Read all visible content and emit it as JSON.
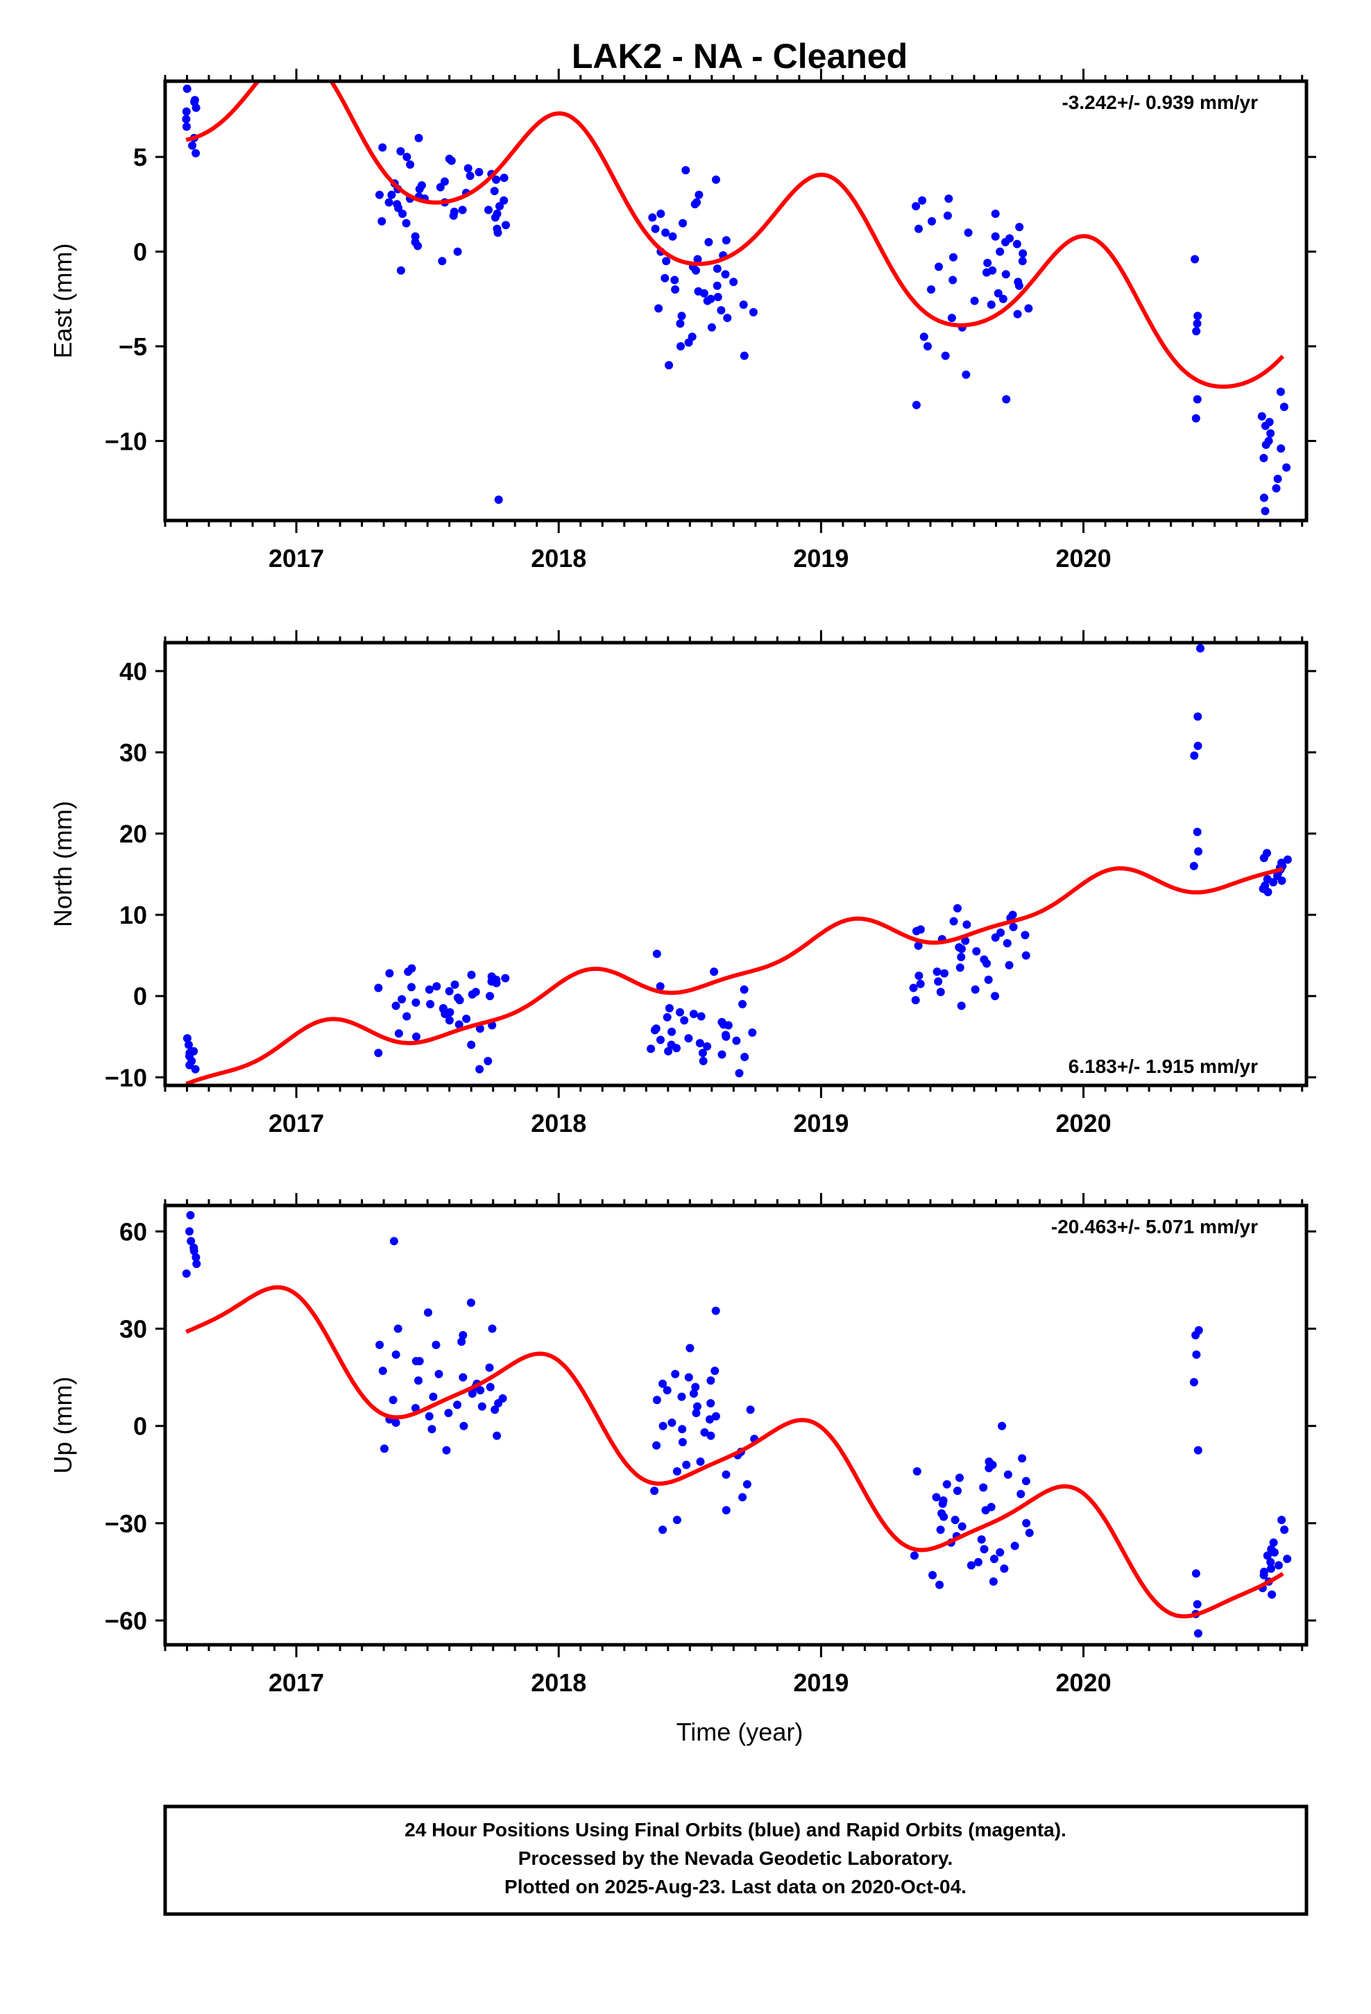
{
  "title": "LAK2  - NA - Cleaned",
  "xlabel": "Time (year)",
  "footer": {
    "line1": "24 Hour Positions Using Final Orbits (blue) and Rapid Orbits (magenta).",
    "line2": "Processed by the Nevada Geodetic Laboratory.",
    "line3": "Plotted on 2025-Aug-23. Last data on 2020-Oct-04."
  },
  "colors": {
    "final": "#0000ff",
    "fit": "#ff0000",
    "axes": "#000000"
  },
  "chart_data": [
    {
      "type": "scatter",
      "ylabel": "East (mm)",
      "rate": "-3.242+/- 0.939 mm/yr",
      "rate_position": "top-right",
      "xlim": [
        2016.5,
        2020.85
      ],
      "ylim": [
        -14.2,
        9.0
      ],
      "xticks": [
        2017,
        2018,
        2019,
        2020
      ],
      "yticks": [
        5,
        0,
        -5,
        -10
      ],
      "ytick_labels": [
        "5",
        "0",
        "−5",
        "−10"
      ],
      "clusters": [
        {
          "t0": 2016.58,
          "t1": 2016.62,
          "values": [
            8.6,
            8.0,
            7.6,
            7.4,
            7.0,
            6.6,
            6.0,
            5.6,
            5.2,
            7.9
          ]
        },
        {
          "t0": 2017.3,
          "t1": 2017.8,
          "values": [
            6.0,
            5.3,
            4.6,
            4.2,
            3.9,
            3.6,
            3.3,
            3.0,
            2.8,
            2.5,
            2.2,
            2.0,
            1.8,
            1.5,
            1.2,
            1.0,
            0.5,
            0.0,
            -0.5,
            -1.0,
            3.2,
            2.9,
            2.7,
            2.4,
            2.0,
            1.6,
            3.8,
            4.1,
            3.5,
            2.6,
            3.1,
            4.8,
            5.0,
            2.3,
            1.4,
            0.8,
            3.7,
            4.4,
            2.1,
            3.4,
            2.8,
            1.9,
            0.3,
            4.0,
            3.0,
            2.6,
            5.5,
            4.9,
            3.3,
            2.2,
            -13.1
          ]
        },
        {
          "t0": 2018.35,
          "t1": 2018.75,
          "values": [
            4.3,
            3.8,
            3.0,
            2.0,
            1.0,
            0.5,
            0.0,
            -0.5,
            -1.0,
            -1.5,
            -2.0,
            -2.5,
            -3.0,
            -3.5,
            -4.0,
            -4.5,
            -5.0,
            -5.5,
            -6.0,
            -0.8,
            -1.8,
            -2.8,
            -3.2,
            -2.2,
            -1.2,
            -0.2,
            0.8,
            1.5,
            2.5,
            -1.6,
            -2.6,
            -3.8,
            -4.8,
            -3.4,
            -2.4,
            -1.4,
            -0.4,
            0.6,
            1.2,
            1.8,
            2.6,
            -0.9,
            -2.1,
            -3.1
          ]
        },
        {
          "t0": 2019.35,
          "t1": 2019.8,
          "values": [
            2.7,
            2.0,
            1.2,
            0.5,
            0.0,
            -0.5,
            -1.0,
            -1.5,
            -2.0,
            -2.5,
            -3.0,
            -3.5,
            -4.0,
            -4.5,
            -5.0,
            -5.5,
            -7.8,
            -8.1,
            -6.5,
            -1.2,
            -2.2,
            -0.3,
            0.8,
            1.6,
            2.4,
            -1.8,
            -2.8,
            -3.3,
            -0.8,
            0.4,
            1.0,
            2.8,
            1.9,
            0.7,
            -0.6,
            -1.6,
            -2.6,
            -1.1,
            -0.1,
            1.3
          ]
        },
        {
          "t0": 2020.42,
          "t1": 2020.44,
          "values": [
            -0.4,
            -3.4,
            -3.8,
            -4.2,
            -7.8,
            -8.8
          ]
        },
        {
          "t0": 2020.68,
          "t1": 2020.78,
          "values": [
            -7.4,
            -8.2,
            -8.7,
            -9.2,
            -9.6,
            -10.0,
            -10.4,
            -10.9,
            -11.4,
            -12.0,
            -12.5,
            -13.0,
            -13.7,
            -9.0,
            -10.2
          ]
        }
      ],
      "fit": {
        "offset": 5.9,
        "rate": -3.242,
        "t_ref": 2016.58,
        "ann_cos": -2.85,
        "ann_sin": 1.35,
        "semi_cos": 0.35,
        "semi_sin": -0.2,
        "t_end": 2020.76
      }
    },
    {
      "type": "scatter",
      "ylabel": "North (mm)",
      "rate": "6.183+/- 1.915 mm/yr",
      "rate_position": "bottom-right",
      "xlim": [
        2016.5,
        2020.85
      ],
      "ylim": [
        -11.0,
        43.5
      ],
      "xticks": [
        2017,
        2018,
        2019,
        2020
      ],
      "yticks": [
        40,
        30,
        20,
        10,
        0,
        -10
      ],
      "ytick_labels": [
        "40",
        "30",
        "20",
        "10",
        "0",
        "−10"
      ],
      "clusters": [
        {
          "t0": 2016.58,
          "t1": 2016.62,
          "values": [
            -5.2,
            -6.0,
            -6.8,
            -7.4,
            -8.0,
            -8.5,
            -9.0,
            -7.0
          ]
        },
        {
          "t0": 2017.3,
          "t1": 2017.8,
          "values": [
            3.4,
            2.8,
            2.2,
            1.6,
            1.0,
            0.5,
            0.0,
            -0.5,
            -1.0,
            -1.5,
            -2.0,
            -2.5,
            -3.0,
            -3.5,
            -4.0,
            -5.0,
            -6.0,
            -7.0,
            -8.0,
            -9.0,
            1.8,
            0.8,
            -0.2,
            -1.2,
            -2.2,
            2.4,
            1.2,
            0.2,
            -0.8,
            3.0,
            2.0,
            1.4,
            -1.6,
            -2.8,
            -3.6,
            -4.6,
            0.6,
            -0.4,
            1.1,
            2.6
          ]
        },
        {
          "t0": 2018.35,
          "t1": 2018.75,
          "values": [
            5.2,
            3.0,
            0.8,
            -1.5,
            -2.5,
            -3.5,
            -4.0,
            -4.5,
            -5.0,
            -5.5,
            -6.0,
            -6.5,
            -7.0,
            -7.5,
            -8.0,
            -9.5,
            -3.0,
            -2.0,
            -4.2,
            -5.2,
            -6.2,
            -7.2,
            -3.6,
            -2.6,
            -4.8,
            -5.8,
            -6.8,
            -2.2,
            -3.2,
            1.2,
            -1.0,
            -4.4,
            -5.4,
            -6.4
          ]
        },
        {
          "t0": 2019.35,
          "t1": 2019.8,
          "values": [
            10.8,
            10.0,
            9.2,
            8.5,
            8.0,
            7.5,
            7.0,
            6.5,
            6.0,
            5.5,
            5.0,
            4.5,
            4.0,
            3.5,
            3.0,
            2.5,
            2.0,
            1.5,
            1.0,
            0.5,
            0.0,
            -0.5,
            -1.2,
            6.8,
            7.8,
            8.8,
            9.6,
            5.8,
            4.8,
            3.8,
            2.8,
            1.8,
            0.8,
            7.2,
            8.2,
            6.2
          ]
        },
        {
          "t0": 2020.42,
          "t1": 2020.45,
          "values": [
            42.8,
            34.4,
            30.8,
            29.6,
            20.2,
            17.8,
            16.0
          ]
        },
        {
          "t0": 2020.68,
          "t1": 2020.78,
          "values": [
            17.6,
            17.0,
            16.4,
            16.0,
            15.6,
            15.2,
            14.8,
            14.4,
            14.0,
            13.6,
            13.2,
            12.8,
            15.8,
            14.2,
            16.8
          ]
        }
      ],
      "fit": {
        "offset": -10.8,
        "rate": 6.183,
        "t_ref": 2016.58,
        "ann_cos": -2.25,
        "ann_sin": -0.05,
        "semi_cos": 0.6,
        "semi_sin": 0.45,
        "t_end": 2020.76
      }
    },
    {
      "type": "scatter",
      "ylabel": "Up (mm)",
      "rate": "-20.463+/- 5.071 mm/yr",
      "rate_position": "top-right",
      "xlim": [
        2016.5,
        2020.85
      ],
      "ylim": [
        -67.5,
        68.0
      ],
      "xticks": [
        2017,
        2018,
        2019,
        2020
      ],
      "yticks": [
        60,
        30,
        0,
        -30,
        -60
      ],
      "ytick_labels": [
        "60",
        "30",
        "0",
        "−30",
        "−60"
      ],
      "clusters": [
        {
          "t0": 2016.58,
          "t1": 2016.62,
          "values": [
            65.0,
            60.0,
            57.0,
            54.0,
            52.0,
            50.0,
            47.0,
            55.0
          ]
        },
        {
          "t0": 2017.3,
          "t1": 2017.8,
          "values": [
            38.0,
            35.0,
            30.0,
            25.0,
            20.0,
            16.0,
            12.0,
            8.0,
            5.0,
            2.0,
            0.0,
            -3.0,
            -7.0,
            14.0,
            10.0,
            6.0,
            3.0,
            9.0,
            11.0,
            4.0,
            7.0,
            13.0,
            18.0,
            22.0,
            25.0,
            28.0,
            30.0,
            57.0,
            -7.5,
            15.0,
            12.0,
            8.5,
            5.5,
            20.0,
            26.0,
            17.0,
            1.0,
            -1.0,
            6.5
          ]
        },
        {
          "t0": 2018.35,
          "t1": 2018.75,
          "values": [
            35.5,
            24.0,
            17.0,
            15.0,
            12.0,
            10.0,
            8.0,
            5.0,
            2.0,
            0.0,
            -3.0,
            -6.0,
            -9.0,
            -12.0,
            -15.0,
            -18.0,
            -22.0,
            -26.0,
            -29.0,
            -32.0,
            3.0,
            6.0,
            9.0,
            13.0,
            -1.0,
            -4.0,
            -8.0,
            -11.0,
            11.0,
            7.0,
            4.0,
            1.0,
            -2.0,
            -5.0,
            14.0,
            16.0,
            -14.0,
            -20.0
          ]
        },
        {
          "t0": 2019.35,
          "t1": 2019.8,
          "values": [
            0.0,
            -12.0,
            -18.0,
            -22.0,
            -26.0,
            -28.0,
            -30.0,
            -32.0,
            -34.0,
            -36.0,
            -38.0,
            -40.0,
            -42.0,
            -44.0,
            -46.0,
            -48.0,
            -49.0,
            -10.0,
            -14.0,
            -16.0,
            -20.0,
            -24.0,
            -27.0,
            -29.0,
            -31.0,
            -33.0,
            -35.0,
            -37.0,
            -39.0,
            -41.0,
            -43.0,
            -25.0,
            -23.0,
            -21.0,
            -19.0,
            -17.0,
            -15.0,
            -13.0,
            -11.0
          ]
        },
        {
          "t0": 2020.42,
          "t1": 2020.44,
          "values": [
            29.5,
            28.0,
            22.0,
            13.5,
            -7.5,
            -45.5,
            -55.0,
            -58.0,
            -64.0
          ]
        },
        {
          "t0": 2020.68,
          "t1": 2020.78,
          "values": [
            -29.0,
            -32.0,
            -36.0,
            -38.0,
            -40.0,
            -42.0,
            -44.0,
            -46.0,
            -48.0,
            -50.0,
            -52.0,
            -41.0,
            -43.0,
            -45.0,
            -39.0
          ]
        }
      ],
      "fit": {
        "offset": 29.0,
        "rate": -20.463,
        "t_ref": 2016.58,
        "ann_cos": -7.0,
        "ann_sin": 13.0,
        "semi_cos": 2.0,
        "semi_sin": -2.0,
        "t_end": 2020.76
      }
    }
  ]
}
